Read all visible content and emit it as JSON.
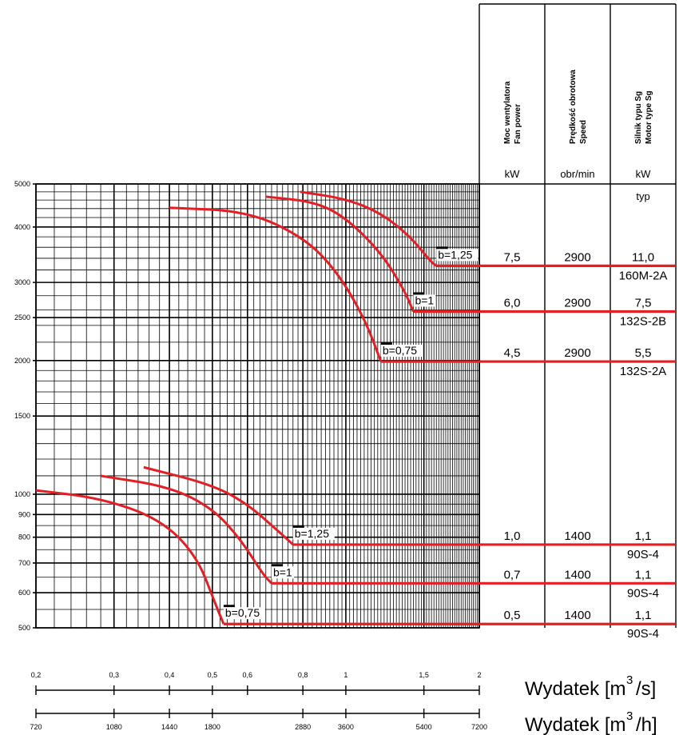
{
  "chart_data": {
    "type": "line",
    "y_axis": {
      "scale": "log",
      "range": [
        500,
        5000
      ],
      "ticks": [
        "5000",
        "4000",
        "3000",
        "2500",
        "2000",
        "1500",
        "1000",
        "900",
        "800",
        "700",
        "600",
        "500"
      ]
    },
    "x_axes": [
      {
        "title_text": "Wydatek [m",
        "title_sup": "3",
        "title_end": "/s]",
        "ticks": [
          "0,2",
          "0,3",
          "0,4",
          "0,5",
          "0,6",
          "0,8",
          "1",
          "1,5",
          "2"
        ]
      },
      {
        "title_text": "Wydatek [m",
        "title_sup": "3",
        "title_end": "/h]",
        "ticks": [
          "720",
          "1080",
          "1440",
          "1800",
          "2880",
          "3600",
          "5400",
          "7200"
        ]
      }
    ],
    "table": {
      "headers": [
        {
          "line1": "Moc wentylatora",
          "line2": "Fan power",
          "unit": "kW"
        },
        {
          "line1": "Prędkość obrotowa",
          "line2": "Speed",
          "unit": "obr/min"
        },
        {
          "line1": "Silnik typu Sg",
          "line2": "Motor type Sg",
          "unit": "kW",
          "unit2": "typ"
        }
      ],
      "rows": [
        {
          "power": "7,5",
          "speed": "2900",
          "motor_kw": "11,0",
          "motor_type": "160M-2A"
        },
        {
          "power": "6,0",
          "speed": "2900",
          "motor_kw": "7,5",
          "motor_type": "132S-2B"
        },
        {
          "power": "4,5",
          "speed": "2900",
          "motor_kw": "5,5",
          "motor_type": "132S-2A"
        },
        {
          "power": "1,0",
          "speed": "1400",
          "motor_kw": "1,1",
          "motor_type": "90S-4"
        },
        {
          "power": "0,7",
          "speed": "1400",
          "motor_kw": "1,1",
          "motor_type": "90S-4"
        },
        {
          "power": "0,5",
          "speed": "1400",
          "motor_kw": "1,1",
          "motor_type": "90S-4"
        }
      ]
    },
    "series": [
      {
        "label": "b=1,25",
        "speed": "2900",
        "color": "#e31e24",
        "points": [
          [
            0.79,
            4800
          ],
          [
            1.0,
            4630
          ],
          [
            1.2,
            4300
          ],
          [
            1.4,
            3800
          ],
          [
            1.55,
            3350
          ],
          [
            1.6,
            3270
          ]
        ]
      },
      {
        "label": "b=1",
        "speed": "2900",
        "color": "#e31e24",
        "points": [
          [
            0.66,
            4680
          ],
          [
            0.85,
            4560
          ],
          [
            1.0,
            4200
          ],
          [
            1.2,
            3500
          ],
          [
            1.35,
            2900
          ],
          [
            1.42,
            2580
          ]
        ]
      },
      {
        "label": "b=0,75",
        "speed": "2900",
        "color": "#e31e24",
        "points": [
          [
            0.4,
            4420
          ],
          [
            0.6,
            4340
          ],
          [
            0.8,
            3800
          ],
          [
            0.95,
            3200
          ],
          [
            1.1,
            2500
          ],
          [
            1.2,
            1990
          ]
        ]
      },
      {
        "label": "b=1,25",
        "speed": "1400",
        "color": "#e31e24",
        "points": [
          [
            0.35,
            1150
          ],
          [
            0.5,
            1050
          ],
          [
            0.6,
            950
          ],
          [
            0.7,
            830
          ],
          [
            0.76,
            770
          ]
        ]
      },
      {
        "label": "b=1",
        "speed": "1400",
        "color": "#e31e24",
        "points": [
          [
            0.28,
            1100
          ],
          [
            0.4,
            1040
          ],
          [
            0.5,
            930
          ],
          [
            0.58,
            790
          ],
          [
            0.65,
            660
          ],
          [
            0.68,
            630
          ]
        ]
      },
      {
        "label": "b=0,75",
        "speed": "1400",
        "color": "#e31e24",
        "points": [
          [
            0.2,
            1020
          ],
          [
            0.28,
            980
          ],
          [
            0.38,
            880
          ],
          [
            0.46,
            730
          ],
          [
            0.51,
            560
          ],
          [
            0.53,
            510
          ]
        ]
      }
    ]
  }
}
